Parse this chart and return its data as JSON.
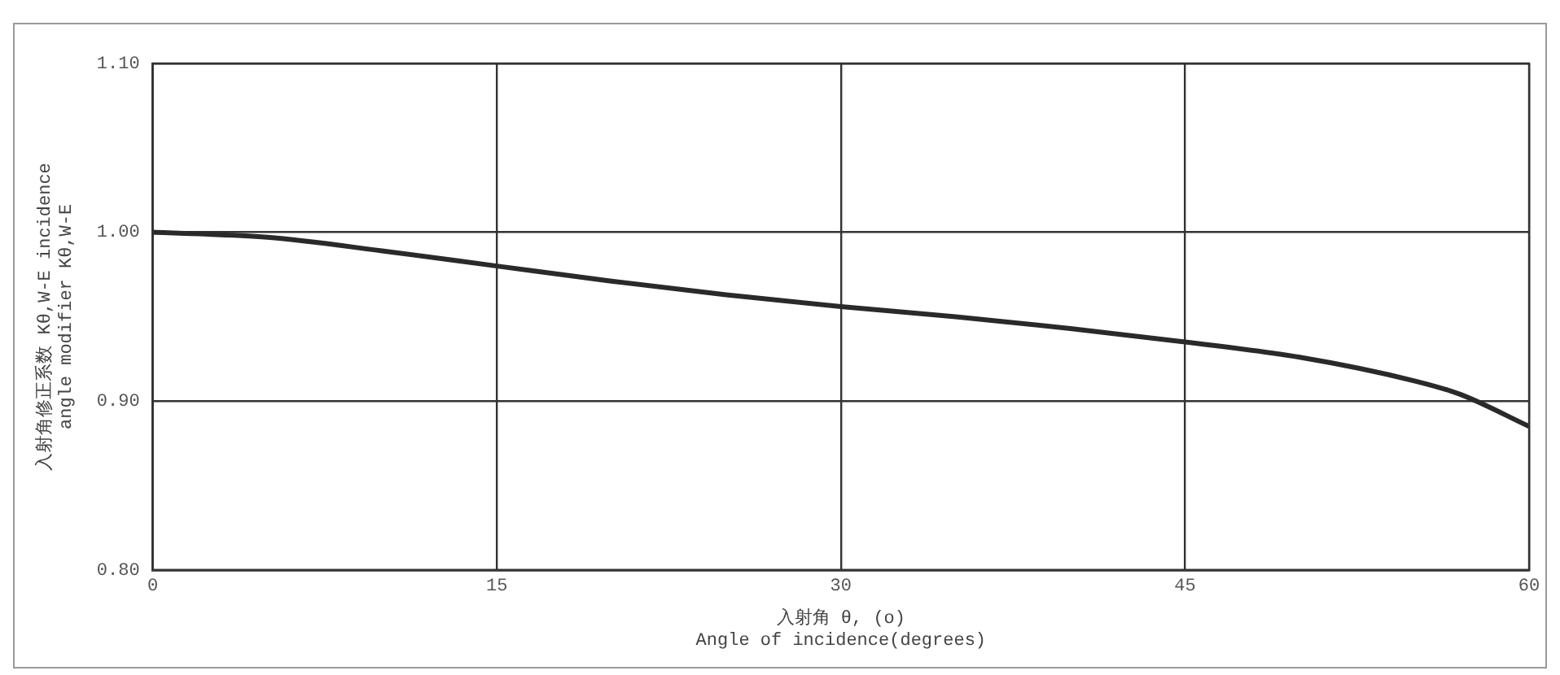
{
  "chart_data": {
    "type": "line",
    "xlabel": "入射角 θ, (o)\nAngle of incidence(degrees)",
    "ylabel": "入射角修正系数 Kθ,W-E incidence\nangle modifier Kθ,W-E",
    "x": [
      0,
      5,
      10,
      15,
      20,
      25,
      30,
      35,
      40,
      45,
      50,
      55,
      57,
      60
    ],
    "series": [
      {
        "color": "#2a2a2a",
        "values": [
          1.0,
          0.997,
          0.989,
          0.98,
          0.971,
          0.963,
          0.956,
          0.95,
          0.943,
          0.935,
          0.926,
          0.912,
          0.904,
          0.885
        ]
      }
    ],
    "xlim": [
      0,
      60
    ],
    "xticks": [
      0,
      15,
      30,
      45,
      60
    ],
    "ylim": [
      0.8,
      1.1
    ],
    "yticks": [
      {
        "value": 0.8,
        "label": "0.80"
      },
      {
        "value": 0.9,
        "label": "0.90"
      },
      {
        "value": 1.0,
        "label": "1.00"
      },
      {
        "value": 1.1,
        "label": "1.10"
      }
    ],
    "grid": true,
    "marker": "none",
    "line_style": "solid",
    "legend": false
  }
}
